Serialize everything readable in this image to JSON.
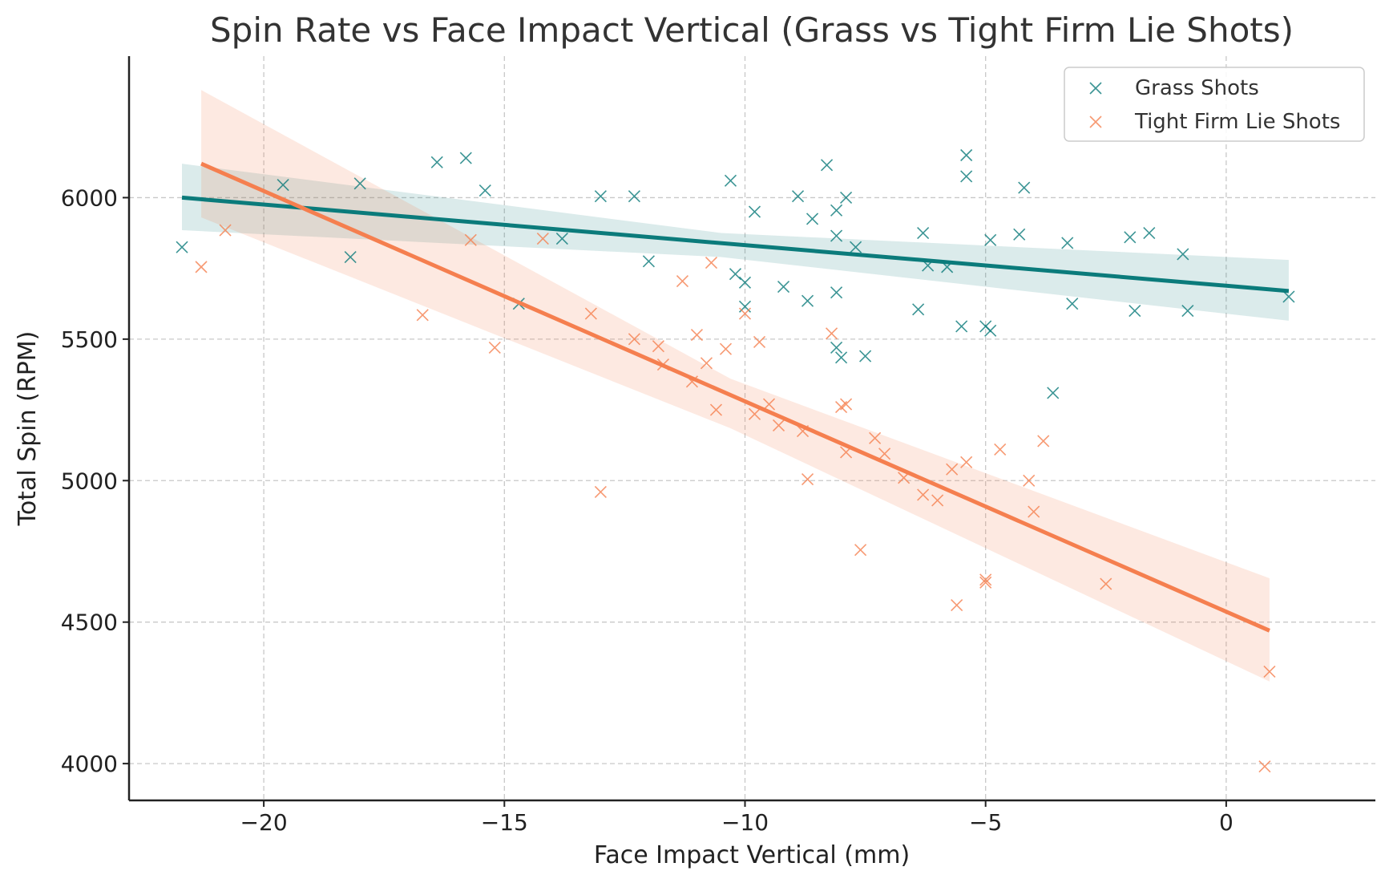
{
  "chart_data": {
    "type": "scatter",
    "title": "Spin Rate vs Face Impact Vertical (Grass vs Tight Firm Lie Shots)",
    "xlabel": "Face Impact Vertical (mm)",
    "ylabel": "Total Spin (RPM)",
    "xlim": [
      -22.8,
      3.1
    ],
    "ylim": [
      3870,
      6500
    ],
    "x_ticks": [
      -20,
      -15,
      -10,
      -5,
      0
    ],
    "x_tick_labels": [
      "−20",
      "−15",
      "−10",
      "−5",
      "0"
    ],
    "y_ticks": [
      4000,
      4500,
      5000,
      5500,
      6000
    ],
    "y_tick_labels": [
      "4000",
      "4500",
      "5000",
      "5500",
      "6000"
    ],
    "grid": true,
    "legend_position": "top-right",
    "series": [
      {
        "name": "Grass Shots",
        "color": "#0b7b7b",
        "marker": "x",
        "points": [
          [
            -21.7,
            5825
          ],
          [
            -19.6,
            6045
          ],
          [
            -18.2,
            5790
          ],
          [
            -18.0,
            6050
          ],
          [
            -16.4,
            6125
          ],
          [
            -15.8,
            6140
          ],
          [
            -15.4,
            6025
          ],
          [
            -14.7,
            5625
          ],
          [
            -13.8,
            5855
          ],
          [
            -13.0,
            6005
          ],
          [
            -12.3,
            6005
          ],
          [
            -12.0,
            5775
          ],
          [
            -10.3,
            6060
          ],
          [
            -10.2,
            5730
          ],
          [
            -10.0,
            5700
          ],
          [
            -10.0,
            5615
          ],
          [
            -9.8,
            5950
          ],
          [
            -9.2,
            5685
          ],
          [
            -8.9,
            6005
          ],
          [
            -8.7,
            5635
          ],
          [
            -8.6,
            5925
          ],
          [
            -8.3,
            6115
          ],
          [
            -8.1,
            5955
          ],
          [
            -8.1,
            5865
          ],
          [
            -8.1,
            5665
          ],
          [
            -8.1,
            5470
          ],
          [
            -8.0,
            5435
          ],
          [
            -7.9,
            6000
          ],
          [
            -7.7,
            5825
          ],
          [
            -7.5,
            5440
          ],
          [
            -6.4,
            5605
          ],
          [
            -6.3,
            5875
          ],
          [
            -6.2,
            5760
          ],
          [
            -5.8,
            5755
          ],
          [
            -5.5,
            5545
          ],
          [
            -5.4,
            6150
          ],
          [
            -5.4,
            6075
          ],
          [
            -5.0,
            5545
          ],
          [
            -4.9,
            5850
          ],
          [
            -4.9,
            5530
          ],
          [
            -4.3,
            5870
          ],
          [
            -4.2,
            6035
          ],
          [
            -3.6,
            5310
          ],
          [
            -3.3,
            5840
          ],
          [
            -3.2,
            5625
          ],
          [
            -2.0,
            5860
          ],
          [
            -1.9,
            5600
          ],
          [
            -1.6,
            5875
          ],
          [
            -0.9,
            5800
          ],
          [
            -0.8,
            5600
          ],
          [
            1.3,
            5650
          ]
        ],
        "fit": {
          "x": [
            -21.7,
            1.3
          ],
          "y": [
            6000,
            5670
          ]
        },
        "ci_upper": [
          [
            -21.7,
            6120
          ],
          [
            -10.5,
            5875
          ],
          [
            1.3,
            5780
          ]
        ],
        "ci_lower": [
          [
            -21.7,
            5885
          ],
          [
            -10.5,
            5790
          ],
          [
            1.3,
            5565
          ]
        ]
      },
      {
        "name": "Tight Firm Lie Shots",
        "color": "#f57f4f",
        "marker": "x",
        "points": [
          [
            -21.3,
            5755
          ],
          [
            -20.8,
            5885
          ],
          [
            -16.7,
            5585
          ],
          [
            -15.7,
            5850
          ],
          [
            -15.2,
            5470
          ],
          [
            -14.2,
            5855
          ],
          [
            -13.2,
            5590
          ],
          [
            -13.0,
            4960
          ],
          [
            -12.3,
            5500
          ],
          [
            -11.8,
            5475
          ],
          [
            -11.7,
            5410
          ],
          [
            -11.3,
            5705
          ],
          [
            -11.1,
            5350
          ],
          [
            -11.0,
            5515
          ],
          [
            -10.8,
            5415
          ],
          [
            -10.7,
            5770
          ],
          [
            -10.6,
            5250
          ],
          [
            -10.4,
            5465
          ],
          [
            -10.0,
            5590
          ],
          [
            -9.8,
            5235
          ],
          [
            -9.7,
            5490
          ],
          [
            -9.5,
            5270
          ],
          [
            -9.3,
            5195
          ],
          [
            -8.8,
            5175
          ],
          [
            -8.7,
            5005
          ],
          [
            -8.2,
            5520
          ],
          [
            -8.0,
            5260
          ],
          [
            -7.9,
            5270
          ],
          [
            -7.9,
            5100
          ],
          [
            -7.6,
            4755
          ],
          [
            -7.3,
            5150
          ],
          [
            -7.1,
            5095
          ],
          [
            -6.7,
            5010
          ],
          [
            -6.3,
            4950
          ],
          [
            -6.0,
            4930
          ],
          [
            -5.7,
            5040
          ],
          [
            -5.6,
            4560
          ],
          [
            -5.4,
            5065
          ],
          [
            -5.0,
            4650
          ],
          [
            -5.0,
            4640
          ],
          [
            -4.7,
            5110
          ],
          [
            -4.1,
            5000
          ],
          [
            -4.0,
            4890
          ],
          [
            -3.8,
            5140
          ],
          [
            -2.5,
            4635
          ],
          [
            0.8,
            3990
          ],
          [
            0.9,
            4325
          ]
        ],
        "fit": {
          "x": [
            -21.3,
            0.9
          ],
          "y": [
            6120,
            4470
          ]
        },
        "ci_upper": [
          [
            -21.3,
            6380
          ],
          [
            -10.3,
            5360
          ],
          [
            0.9,
            4655
          ]
        ],
        "ci_lower": [
          [
            -21.3,
            5930
          ],
          [
            -10.3,
            5185
          ],
          [
            0.9,
            4290
          ]
        ]
      }
    ]
  }
}
